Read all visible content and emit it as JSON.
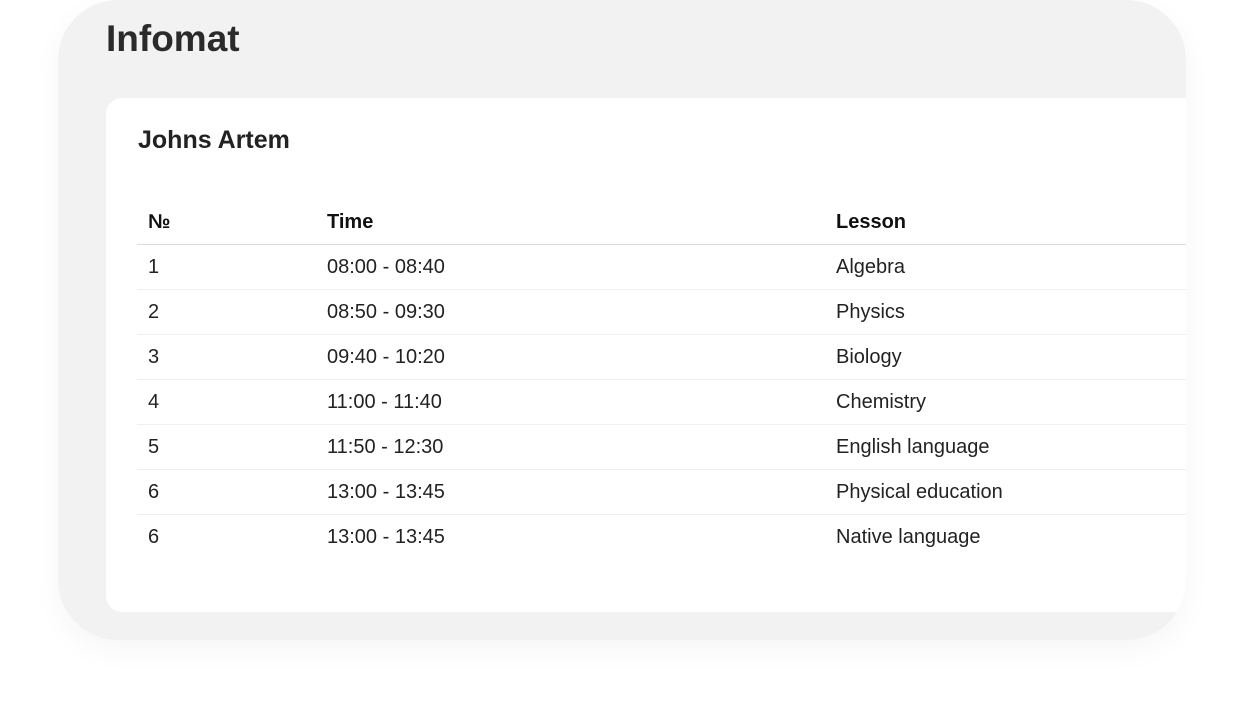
{
  "app": {
    "title": "Infomat"
  },
  "schedule": {
    "student_name": "Johns Artem",
    "columns": [
      "№",
      "Time",
      "Lesson"
    ],
    "rows": [
      {
        "number": "1",
        "time": "08:00 - 08:40",
        "lesson": "Algebra"
      },
      {
        "number": "2",
        "time": "08:50 - 09:30",
        "lesson": "Physics"
      },
      {
        "number": "3",
        "time": "09:40 - 10:20",
        "lesson": "Biology"
      },
      {
        "number": "4",
        "time": "11:00 - 11:40",
        "lesson": "Chemistry"
      },
      {
        "number": "5",
        "time": "11:50 - 12:30",
        "lesson": "English language"
      },
      {
        "number": "6",
        "time": "13:00 - 13:45",
        "lesson": "Physical education"
      },
      {
        "number": "6",
        "time": "13:00 - 13:45",
        "lesson": "Native language"
      }
    ]
  }
}
